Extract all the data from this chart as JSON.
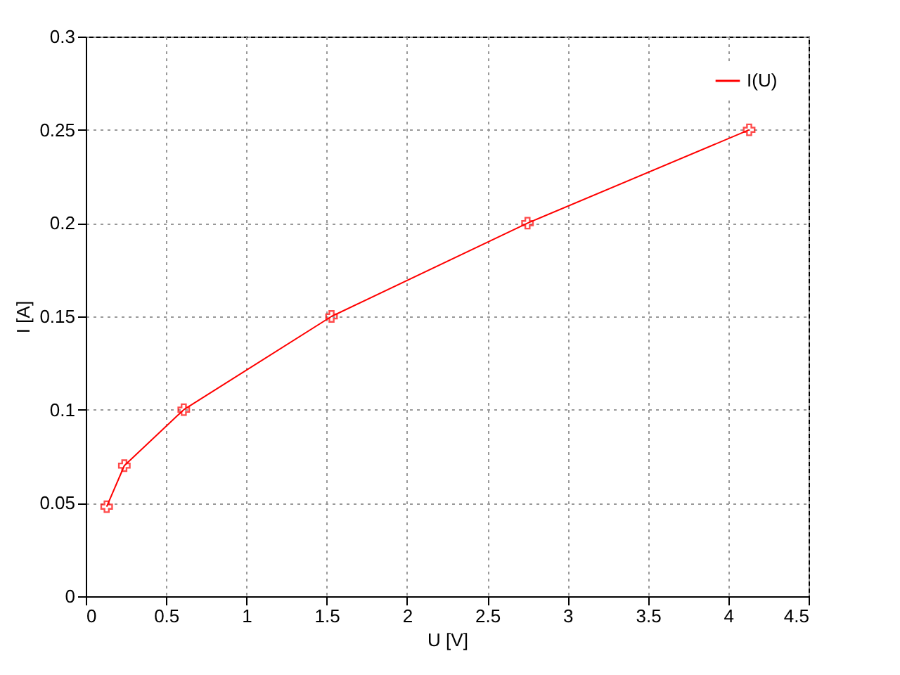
{
  "chart_data": {
    "type": "line",
    "xlabel": "U [V]",
    "ylabel": "I [A]",
    "x": [
      0.13,
      0.24,
      0.61,
      1.53,
      2.75,
      4.13
    ],
    "series": [
      {
        "name": "I(U)",
        "color": "#ff0000",
        "values": [
          0.048,
          0.07,
          0.1,
          0.15,
          0.2,
          0.25
        ]
      }
    ],
    "xlim": [
      0,
      4.5
    ],
    "xticks": [
      0,
      0.5,
      1,
      1.5,
      2,
      2.5,
      3,
      3.5,
      4,
      4.5
    ],
    "ylim": [
      0,
      0.3
    ],
    "yticks": [
      0,
      0.05,
      0.1,
      0.15,
      0.2,
      0.25,
      0.3
    ],
    "grid": true,
    "legend": "top right",
    "marker": "cross",
    "line_style": "solid"
  }
}
